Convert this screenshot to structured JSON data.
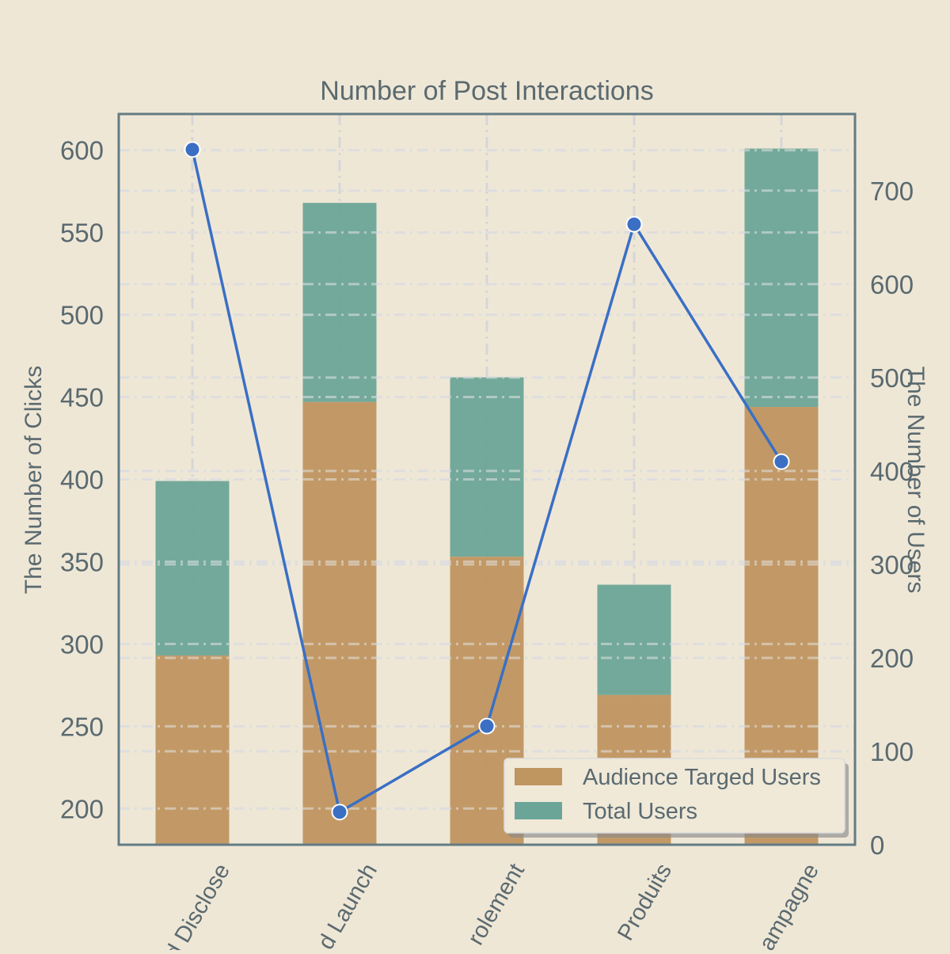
{
  "chart_data": {
    "type": "bar",
    "title": "Number of Post Interactions",
    "ylabel": "The Number of Clicks",
    "y2label": "The Number of Users",
    "categories": [
      "d Disclose",
      "d Launch",
      "rolement",
      "Produits",
      "ampagne"
    ],
    "ylim": [
      178,
      622
    ],
    "y2lim": [
      0,
      782
    ],
    "yticks": [
      200,
      250,
      300,
      350,
      400,
      450,
      500,
      550,
      600
    ],
    "y2ticks": [
      0,
      100,
      200,
      300,
      400,
      500,
      600,
      700
    ],
    "series": [
      {
        "name": "Audience Targed Users",
        "kind": "bar",
        "axis": "left",
        "values": [
          293,
          447,
          353,
          269,
          444
        ]
      },
      {
        "name": "Total Users",
        "kind": "bar-stacked",
        "axis": "left",
        "values": [
          399,
          568,
          462,
          336,
          601
        ]
      },
      {
        "name": "",
        "kind": "line",
        "axis": "right",
        "values": [
          744,
          35,
          127,
          664,
          410
        ]
      }
    ],
    "colors": {
      "audience": "#bf9560",
      "total": "#6ba597",
      "line": "#3a6fc4",
      "axis": "#637c84",
      "grid": "#d6d6d8",
      "background": "#efe7d6"
    },
    "grid": true,
    "legend_position": "bottom-right"
  }
}
